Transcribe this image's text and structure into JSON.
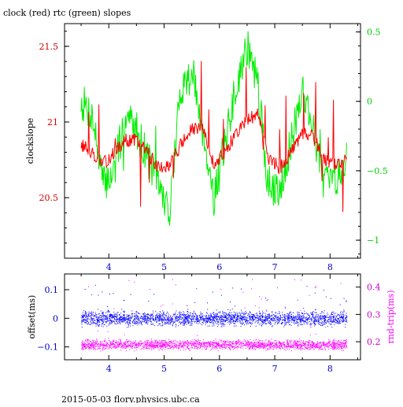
{
  "title": "clock (red) rtc (green) slopes",
  "footer": "2015-05-03 flory.physics.ubc.ca",
  "colors": {
    "clock": "#ff0000",
    "rtc": "#00ee00",
    "offset": "#0000ff",
    "rndtrip": "#ff00ff",
    "axis": "#000000",
    "left_tick_text": "#cc0000",
    "right_tick_text": "#00cc00",
    "lower_left_tick_text": "#0000cc",
    "lower_right_tick_text": "#cc00cc"
  },
  "chart_data": [
    {
      "type": "line",
      "title": "clock (red) rtc (green) slopes",
      "xlabel": "",
      "ylabel": "clockslope",
      "y2label": "",
      "xlim": [
        3.2,
        8.55
      ],
      "ylim": [
        20.1,
        21.65
      ],
      "y2lim": [
        -1.13,
        0.56
      ],
      "x_ticks": [
        4,
        5,
        6,
        7,
        8
      ],
      "y_ticks": [
        20.5,
        21,
        21.5
      ],
      "y2_ticks": [
        -1,
        -0.5,
        0,
        0.5
      ],
      "y2_tick_labels": [
        "−1",
        "−0.5",
        "0",
        "0.5"
      ],
      "x_range": [
        3.5,
        8.3
      ],
      "series": [
        {
          "name": "clock (red)",
          "axis": "left",
          "color": "#ff0000",
          "x": [
            3.5,
            3.7,
            3.9,
            4.1,
            4.3,
            4.5,
            4.7,
            4.9,
            5.1,
            5.3,
            5.5,
            5.7,
            5.9,
            6.1,
            6.3,
            6.5,
            6.7,
            6.9,
            7.1,
            7.3,
            7.5,
            7.7,
            7.9,
            8.1,
            8.3
          ],
          "values": [
            20.85,
            20.8,
            20.72,
            20.8,
            20.88,
            20.88,
            20.8,
            20.7,
            20.72,
            20.85,
            20.95,
            20.95,
            20.72,
            20.8,
            20.92,
            21.02,
            21.05,
            20.75,
            20.7,
            20.8,
            20.92,
            20.9,
            20.75,
            20.72,
            20.75
          ]
        },
        {
          "name": "rtc (green)",
          "axis": "right",
          "color": "#00ee00",
          "x": [
            3.5,
            3.7,
            3.9,
            4.1,
            4.3,
            4.5,
            4.7,
            4.9,
            5.1,
            5.3,
            5.5,
            5.7,
            5.9,
            6.1,
            6.3,
            6.5,
            6.7,
            6.9,
            7.1,
            7.3,
            7.5,
            7.7,
            7.9,
            8.1,
            8.3
          ],
          "values": [
            0.0,
            -0.1,
            -0.6,
            -0.5,
            -0.1,
            -0.2,
            -0.4,
            -0.6,
            -0.8,
            0.1,
            0.2,
            -0.2,
            -0.7,
            -0.3,
            0.1,
            0.4,
            0.1,
            -0.7,
            -0.6,
            -0.3,
            0.1,
            -0.2,
            -0.6,
            -0.55,
            -0.4
          ]
        }
      ]
    },
    {
      "type": "scatter",
      "xlabel": "",
      "ylabel": "offset(ms)",
      "y2label": "rnd-trip(ms)",
      "xlim": [
        3.2,
        8.55
      ],
      "ylim": [
        -0.145,
        0.155
      ],
      "y2lim": [
        0.134,
        0.448
      ],
      "x_ticks": [
        4,
        5,
        6,
        7,
        8
      ],
      "y_ticks": [
        -0.1,
        0,
        0.1
      ],
      "y_tick_labels": [
        "−0.1",
        "0",
        "0.1"
      ],
      "y2_ticks": [
        0.2,
        0.3,
        0.4
      ],
      "x_range": [
        3.5,
        8.3
      ],
      "series": [
        {
          "name": "offset",
          "axis": "left",
          "color": "#0000ff",
          "center": 0.0,
          "spread": 0.035,
          "outlier_max": 0.12
        },
        {
          "name": "rnd-trip",
          "axis": "right",
          "color": "#ff00ff",
          "center": 0.19,
          "spread": 0.025,
          "outlier_max": 0.43
        }
      ]
    }
  ]
}
